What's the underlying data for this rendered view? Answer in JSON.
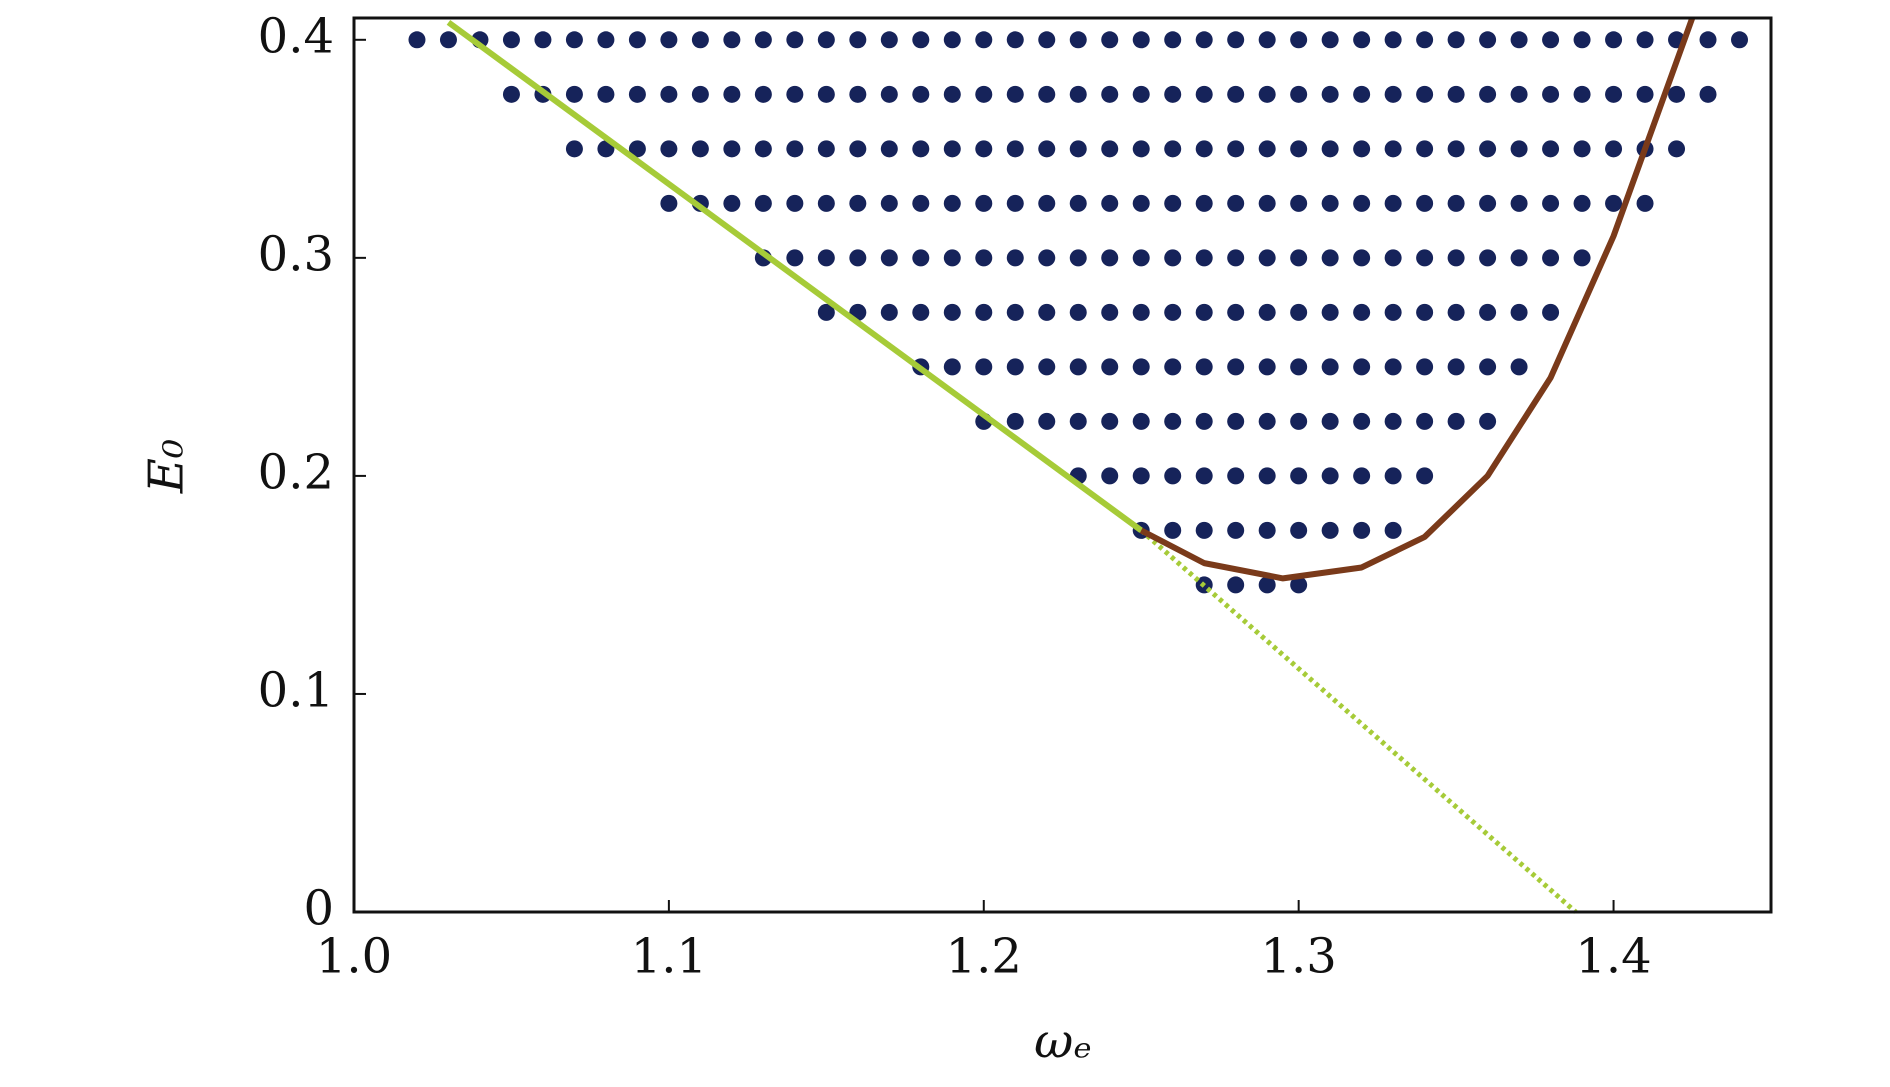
{
  "chart_data": {
    "type": "scatter",
    "xlabel": "ωₑ",
    "ylabel": "E₀",
    "xlim": [
      1.0,
      1.45
    ],
    "ylim": [
      0,
      0.41
    ],
    "xticks": [
      {
        "value": 1.0,
        "label": "1.0"
      },
      1.1,
      1.2,
      1.3,
      1.4
    ],
    "yticks": [
      0,
      0.1,
      0.2,
      0.3,
      0.4
    ],
    "point_color": "#16235a",
    "rows": [
      {
        "y": 0.4,
        "x": [
          1.02,
          1.03,
          1.04,
          1.05,
          1.06,
          1.07,
          1.08,
          1.09,
          1.1,
          1.11,
          1.12,
          1.13,
          1.14,
          1.15,
          1.16,
          1.17,
          1.18,
          1.19,
          1.2,
          1.21,
          1.22,
          1.23,
          1.24,
          1.25,
          1.26,
          1.27,
          1.28,
          1.29,
          1.3,
          1.31,
          1.32,
          1.33,
          1.34,
          1.35,
          1.36,
          1.37,
          1.38,
          1.39,
          1.4,
          1.41,
          1.42,
          1.43,
          1.44
        ]
      },
      {
        "y": 0.375,
        "x": [
          1.05,
          1.06,
          1.07,
          1.08,
          1.09,
          1.1,
          1.11,
          1.12,
          1.13,
          1.14,
          1.15,
          1.16,
          1.17,
          1.18,
          1.19,
          1.2,
          1.21,
          1.22,
          1.23,
          1.24,
          1.25,
          1.26,
          1.27,
          1.28,
          1.29,
          1.3,
          1.31,
          1.32,
          1.33,
          1.34,
          1.35,
          1.36,
          1.37,
          1.38,
          1.39,
          1.4,
          1.41,
          1.42,
          1.43
        ]
      },
      {
        "y": 0.35,
        "x": [
          1.07,
          1.08,
          1.09,
          1.1,
          1.11,
          1.12,
          1.13,
          1.14,
          1.15,
          1.16,
          1.17,
          1.18,
          1.19,
          1.2,
          1.21,
          1.22,
          1.23,
          1.24,
          1.25,
          1.26,
          1.27,
          1.28,
          1.29,
          1.3,
          1.31,
          1.32,
          1.33,
          1.34,
          1.35,
          1.36,
          1.37,
          1.38,
          1.39,
          1.4,
          1.41,
          1.42
        ]
      },
      {
        "y": 0.325,
        "x": [
          1.1,
          1.11,
          1.12,
          1.13,
          1.14,
          1.15,
          1.16,
          1.17,
          1.18,
          1.19,
          1.2,
          1.21,
          1.22,
          1.23,
          1.24,
          1.25,
          1.26,
          1.27,
          1.28,
          1.29,
          1.3,
          1.31,
          1.32,
          1.33,
          1.34,
          1.35,
          1.36,
          1.37,
          1.38,
          1.39,
          1.4,
          1.41
        ]
      },
      {
        "y": 0.3,
        "x": [
          1.13,
          1.14,
          1.15,
          1.16,
          1.17,
          1.18,
          1.19,
          1.2,
          1.21,
          1.22,
          1.23,
          1.24,
          1.25,
          1.26,
          1.27,
          1.28,
          1.29,
          1.3,
          1.31,
          1.32,
          1.33,
          1.34,
          1.35,
          1.36,
          1.37,
          1.38,
          1.39
        ]
      },
      {
        "y": 0.275,
        "x": [
          1.15,
          1.16,
          1.17,
          1.18,
          1.19,
          1.2,
          1.21,
          1.22,
          1.23,
          1.24,
          1.25,
          1.26,
          1.27,
          1.28,
          1.29,
          1.3,
          1.31,
          1.32,
          1.33,
          1.34,
          1.35,
          1.36,
          1.37,
          1.38
        ]
      },
      {
        "y": 0.25,
        "x": [
          1.18,
          1.19,
          1.2,
          1.21,
          1.22,
          1.23,
          1.24,
          1.25,
          1.26,
          1.27,
          1.28,
          1.29,
          1.3,
          1.31,
          1.32,
          1.33,
          1.34,
          1.35,
          1.36,
          1.37
        ]
      },
      {
        "y": 0.225,
        "x": [
          1.2,
          1.21,
          1.22,
          1.23,
          1.24,
          1.25,
          1.26,
          1.27,
          1.28,
          1.29,
          1.3,
          1.31,
          1.32,
          1.33,
          1.34,
          1.35,
          1.36
        ]
      },
      {
        "y": 0.2,
        "x": [
          1.23,
          1.24,
          1.25,
          1.26,
          1.27,
          1.28,
          1.29,
          1.3,
          1.31,
          1.32,
          1.33,
          1.34
        ]
      },
      {
        "y": 0.175,
        "x": [
          1.25,
          1.26,
          1.27,
          1.28,
          1.29,
          1.3,
          1.31,
          1.32,
          1.33
        ]
      },
      {
        "y": 0.15,
        "x": [
          1.27,
          1.28,
          1.29,
          1.3
        ]
      }
    ],
    "lines": [
      {
        "color": "#a6cb38",
        "style": "solid",
        "x": [
          1.03,
          1.25
        ],
        "y": [
          0.408,
          0.175
        ]
      },
      {
        "color": "#a6cb38",
        "style": "dotted",
        "x": [
          1.25,
          1.388
        ],
        "y": [
          0.175,
          0
        ]
      },
      {
        "color": "#7a3a1a",
        "style": "solid",
        "x": [
          1.25,
          1.27,
          1.295,
          1.32,
          1.34,
          1.36,
          1.38,
          1.4,
          1.41,
          1.42,
          1.425
        ],
        "y": [
          0.175,
          0.16,
          0.153,
          0.158,
          0.172,
          0.2,
          0.245,
          0.31,
          0.35,
          0.39,
          0.41
        ]
      }
    ]
  }
}
